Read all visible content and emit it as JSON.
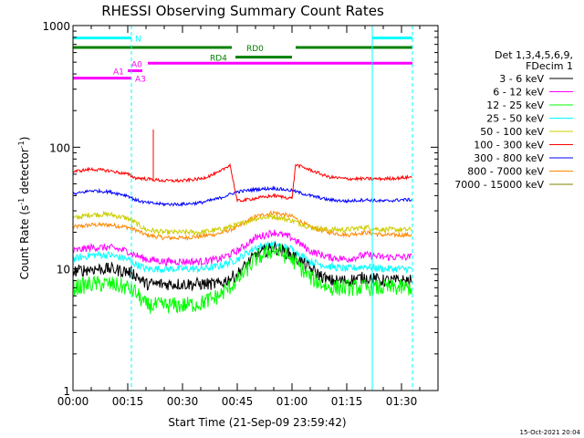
{
  "chart_data": {
    "type": "line",
    "title": "RHESSI Observing Summary Count Rates",
    "xlabel": "Start Time (21-Sep-09 23:59:42)",
    "ylabel_main": "Count Rate (s",
    "ylabel_sup1": "-1",
    "ylabel_mid": " detector",
    "ylabel_sup2": "-1",
    "ylabel_end": ")",
    "x_unit": "minutes from start",
    "xlim": [
      0,
      100
    ],
    "ylim": [
      1,
      1000
    ],
    "y_scale": "log",
    "x_ticks": [
      {
        "value": 0,
        "label": "00:00"
      },
      {
        "value": 15,
        "label": "00:15"
      },
      {
        "value": 30,
        "label": "00:30"
      },
      {
        "value": 45,
        "label": "00:45"
      },
      {
        "value": 60,
        "label": "01:00"
      },
      {
        "value": 75,
        "label": "01:15"
      },
      {
        "value": 90,
        "label": "01:30"
      }
    ],
    "y_ticks": [
      {
        "value": 1,
        "label": "1"
      },
      {
        "value": 10,
        "label": "10"
      },
      {
        "value": 100,
        "label": "100"
      },
      {
        "value": 1000,
        "label": "1000"
      }
    ],
    "legend_header": [
      "Det 1,3,4,5,6,9,",
      "FDecim 1"
    ],
    "legend_position": "right",
    "series": [
      {
        "name": "3 - 6 keV",
        "color": "#000000",
        "t": [
          0,
          5,
          10,
          15,
          17,
          20,
          25,
          30,
          35,
          40,
          45,
          50,
          55,
          60,
          65,
          70,
          75,
          80,
          85,
          90,
          93
        ],
        "values": [
          9.5,
          10,
          10,
          9.5,
          9,
          7.5,
          7.5,
          7.5,
          7.5,
          7.5,
          9,
          13,
          15,
          13,
          10,
          8,
          8,
          8.5,
          8,
          8,
          8
        ],
        "noise": 0.12
      },
      {
        "name": "6 - 12 keV",
        "color": "#ff00ff",
        "t": [
          0,
          5,
          10,
          15,
          17,
          20,
          25,
          30,
          35,
          40,
          45,
          50,
          55,
          60,
          65,
          70,
          75,
          80,
          85,
          90,
          93
        ],
        "values": [
          14,
          15,
          15,
          14,
          13,
          12,
          11.5,
          11.5,
          11.5,
          12,
          14,
          18,
          20,
          18,
          14,
          12.5,
          12,
          13,
          12.5,
          12.5,
          12.5
        ],
        "noise": 0.07
      },
      {
        "name": "12 - 25 keV",
        "color": "#00ff00",
        "t": [
          0,
          5,
          10,
          15,
          17,
          20,
          25,
          30,
          35,
          40,
          45,
          50,
          55,
          60,
          65,
          70,
          75,
          80,
          85,
          90,
          93
        ],
        "values": [
          7,
          7.5,
          7.5,
          7,
          6.5,
          5,
          5,
          5,
          5.2,
          6,
          8,
          12,
          14.5,
          12,
          8.5,
          7,
          7,
          7,
          7,
          7,
          7
        ],
        "noise": 0.16
      },
      {
        "name": "25 - 50 keV",
        "color": "#00ffff",
        "t": [
          0,
          5,
          10,
          15,
          17,
          20,
          25,
          30,
          35,
          40,
          45,
          50,
          55,
          60,
          65,
          70,
          75,
          80,
          85,
          90,
          93
        ],
        "values": [
          12,
          13,
          13,
          12,
          11,
          10,
          10,
          10,
          10,
          10.5,
          12,
          15,
          16,
          14.5,
          11.5,
          10.5,
          10,
          10.5,
          10,
          10,
          10
        ],
        "noise": 0.07
      },
      {
        "name": "50 - 100 keV",
        "color": "#cccc00",
        "t": [
          0,
          5,
          10,
          15,
          17,
          20,
          25,
          30,
          35,
          40,
          45,
          50,
          55,
          60,
          65,
          70,
          75,
          80,
          85,
          90,
          93
        ],
        "values": [
          26,
          28,
          28,
          26,
          24,
          21,
          20,
          20,
          20,
          21,
          23,
          26,
          27,
          25,
          22,
          21,
          21,
          22,
          21,
          21,
          21
        ],
        "noise": 0.05
      },
      {
        "name": "100 - 300 keV",
        "color": "#ff0000",
        "t": [
          0,
          5,
          10,
          15,
          17,
          20,
          25,
          30,
          35,
          40,
          43,
          45,
          50,
          55,
          60,
          61,
          65,
          70,
          75,
          80,
          85,
          90,
          93
        ],
        "values": [
          63,
          66,
          64,
          60,
          56,
          55,
          53,
          53,
          55,
          62,
          72,
          36,
          38,
          40,
          38,
          72,
          65,
          57,
          55,
          55,
          55,
          56,
          57
        ],
        "noise": 0.03
      },
      {
        "name": "300 - 800 keV",
        "color": "#0000ff",
        "t": [
          0,
          5,
          10,
          15,
          17,
          20,
          25,
          30,
          35,
          40,
          44,
          45,
          50,
          55,
          60,
          65,
          70,
          75,
          80,
          85,
          90,
          93
        ],
        "values": [
          41,
          44,
          43,
          40,
          37,
          35,
          34,
          34,
          35,
          38,
          42,
          43,
          45,
          46,
          44,
          40,
          37,
          36,
          37,
          36,
          37,
          37
        ],
        "noise": 0.03
      },
      {
        "name": "800 - 7000 keV",
        "color": "#ff8800",
        "t": [
          0,
          5,
          10,
          15,
          17,
          20,
          25,
          30,
          35,
          40,
          45,
          50,
          55,
          60,
          65,
          70,
          75,
          80,
          85,
          90,
          93
        ],
        "values": [
          22,
          23,
          23,
          22,
          21,
          19,
          18,
          18,
          18.5,
          19.5,
          22,
          27,
          29,
          27,
          22,
          20,
          19,
          20,
          19,
          19,
          19
        ],
        "noise": 0.04
      },
      {
        "name": "7000 - 15000 keV",
        "color": "#808000",
        "t": [],
        "values": [],
        "noise": 0
      }
    ],
    "spike": {
      "series_index": 5,
      "t": 22,
      "value": 140
    },
    "state_bars": [
      {
        "label": "N",
        "color": "#00ffff",
        "y_value": 790,
        "segments": [
          [
            0,
            16
          ],
          [
            82,
            93
          ]
        ],
        "label_t": 17
      },
      {
        "label": "RD0",
        "color": "#008000",
        "y_value": 660,
        "segments": [
          [
            0,
            43.5
          ],
          [
            61,
            93
          ]
        ],
        "label_t": 47.5
      },
      {
        "label": "RD4",
        "color": "#008000",
        "y_value": 550,
        "segments": [
          [
            44.5,
            60
          ]
        ],
        "label_t": 37.5
      },
      {
        "label": "A0",
        "color": "#ff00ff",
        "y_value": 490,
        "segments": [
          [
            20.5,
            93
          ]
        ],
        "label_t": 16
      },
      {
        "label": "A1",
        "color": "#ff00ff",
        "y_value": 425,
        "segments": [
          [
            15,
            19
          ]
        ],
        "label_t": 11
      },
      {
        "label": "A3",
        "color": "#ff00ff",
        "y_value": 370,
        "segments": [
          [
            0,
            16
          ]
        ],
        "label_t": 17
      }
    ],
    "vlines": [
      {
        "t": 0,
        "style": "solid",
        "color": "#00ffff"
      },
      {
        "t": 16,
        "style": "dashed",
        "color": "#00ffff"
      },
      {
        "t": 82,
        "style": "solid",
        "color": "#00ffff"
      },
      {
        "t": 93,
        "style": "dashed",
        "color": "#00ffff"
      }
    ],
    "timestamp": "15-Oct-2021 20:04"
  }
}
